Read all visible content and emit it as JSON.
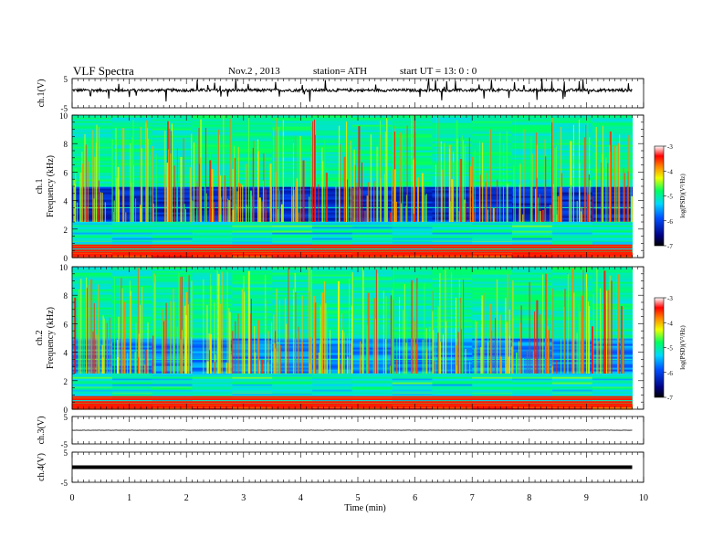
{
  "header": {
    "title": "VLF  Spectra",
    "date": "Nov.2  , 2013",
    "station": "station= ATH",
    "start": "start  UT  =   13: 0  : 0"
  },
  "chart_data": [
    {
      "type": "line",
      "panel": "ch1-waveform",
      "ylabel": "ch.1(V)",
      "ylim": [
        -5,
        5
      ],
      "yticks": [
        -5,
        5
      ],
      "xlim": [
        0,
        10
      ],
      "trace_level": 1.0,
      "noise_amplitude": 0.5,
      "color": "#000000"
    },
    {
      "type": "heatmap",
      "panel": "ch1-spectrogram",
      "ylabel_top": "ch.1",
      "ylabel": "Frequency  (kHz)",
      "ylim": [
        0,
        10
      ],
      "yticks": [
        0,
        2,
        4,
        6,
        8,
        10
      ],
      "xlim": [
        0,
        9.8
      ],
      "colorbar": {
        "label": "log(PSD)(V²/Hz)",
        "ticks": [
          -3,
          -4,
          -5,
          -6,
          -7
        ],
        "range": [
          -7,
          -3
        ]
      }
    },
    {
      "type": "heatmap",
      "panel": "ch2-spectrogram",
      "ylabel_top": "ch.2",
      "ylabel": "Frequency  (kHz)",
      "ylim": [
        0,
        10
      ],
      "yticks": [
        0,
        2,
        4,
        6,
        8,
        10
      ],
      "xlim": [
        0,
        9.8
      ],
      "colorbar": {
        "label": "log(PSD)(V²/Hz)",
        "ticks": [
          -3,
          -4,
          -5,
          -6,
          -7
        ],
        "range": [
          -7,
          -3
        ]
      }
    },
    {
      "type": "line",
      "panel": "ch3-waveform",
      "ylabel": "ch.3(V)",
      "ylim": [
        -5,
        5
      ],
      "yticks": [
        -5,
        5
      ],
      "trace_level": 0.0,
      "noise_amplitude": 0.05,
      "color": "#000000"
    },
    {
      "type": "line",
      "panel": "ch4-waveform",
      "ylabel": "ch.4(V)",
      "ylim": [
        -5,
        5
      ],
      "yticks": [
        -5,
        5
      ],
      "trace_level": 0.0,
      "noise_amplitude": 0.0,
      "color": "#000000"
    }
  ],
  "xaxis": {
    "label": "Time  (min)",
    "ticks": [
      0,
      1,
      2,
      3,
      4,
      5,
      6,
      7,
      8,
      9,
      10
    ],
    "range": [
      0,
      10
    ]
  }
}
